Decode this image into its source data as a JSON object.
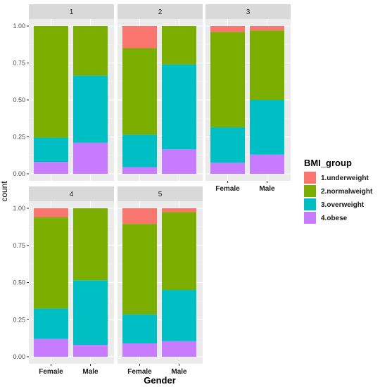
{
  "chart_data": {
    "type": "bar",
    "stacked": true,
    "position": "fill",
    "facet_variable": "group",
    "facets": [
      "1",
      "2",
      "3",
      "4",
      "5"
    ],
    "categories": [
      "Female",
      "Male"
    ],
    "xlabel": "Gender",
    "ylabel": "count",
    "ylim": [
      0,
      1
    ],
    "yticks": [
      "0.00",
      "0.25",
      "0.50",
      "0.75",
      "1.00"
    ],
    "grid": true,
    "legend": {
      "title": "BMI_group",
      "placement": "right",
      "entries": [
        {
          "label": "1.underweight",
          "color": "#F8766D"
        },
        {
          "label": "2.normalweight",
          "color": "#7CAE00"
        },
        {
          "label": "3.overweight",
          "color": "#00BFC4"
        },
        {
          "label": "4.obese",
          "color": "#C77CFF"
        }
      ]
    },
    "panels": [
      {
        "facet": "1",
        "show_x_labels": false,
        "show_y_labels": true,
        "bars": [
          {
            "category": "Female",
            "underweight": 0.0,
            "normalweight": 0.755,
            "overweight": 0.165,
            "obese": 0.08
          },
          {
            "category": "Male",
            "underweight": 0.0,
            "normalweight": 0.335,
            "overweight": 0.455,
            "obese": 0.21
          }
        ]
      },
      {
        "facet": "2",
        "show_x_labels": false,
        "show_y_labels": false,
        "bars": [
          {
            "category": "Female",
            "underweight": 0.15,
            "normalweight": 0.585,
            "overweight": 0.22,
            "obese": 0.045
          },
          {
            "category": "Male",
            "underweight": 0.0,
            "normalweight": 0.26,
            "overweight": 0.575,
            "obese": 0.165
          }
        ]
      },
      {
        "facet": "3",
        "show_x_labels": true,
        "show_y_labels": false,
        "bars": [
          {
            "category": "Female",
            "underweight": 0.04,
            "normalweight": 0.645,
            "overweight": 0.24,
            "obese": 0.075
          },
          {
            "category": "Male",
            "underweight": 0.03,
            "normalweight": 0.47,
            "overweight": 0.37,
            "obese": 0.13
          }
        ]
      },
      {
        "facet": "4",
        "show_x_labels": true,
        "show_y_labels": true,
        "bars": [
          {
            "category": "Female",
            "underweight": 0.06,
            "normalweight": 0.615,
            "overweight": 0.205,
            "obese": 0.12
          },
          {
            "category": "Male",
            "underweight": 0.0,
            "normalweight": 0.485,
            "overweight": 0.435,
            "obese": 0.08
          }
        ]
      },
      {
        "facet": "5",
        "show_x_labels": true,
        "show_y_labels": false,
        "bars": [
          {
            "category": "Female",
            "underweight": 0.105,
            "normalweight": 0.61,
            "overweight": 0.195,
            "obese": 0.09
          },
          {
            "category": "Male",
            "underweight": 0.025,
            "normalweight": 0.525,
            "overweight": 0.345,
            "obese": 0.105
          }
        ]
      }
    ]
  },
  "colors": {
    "panel_background": "#EBEBEB",
    "strip_background": "#D9D9D9",
    "grid_major": "#FFFFFF",
    "grid_minor": "#F5F5F5"
  }
}
